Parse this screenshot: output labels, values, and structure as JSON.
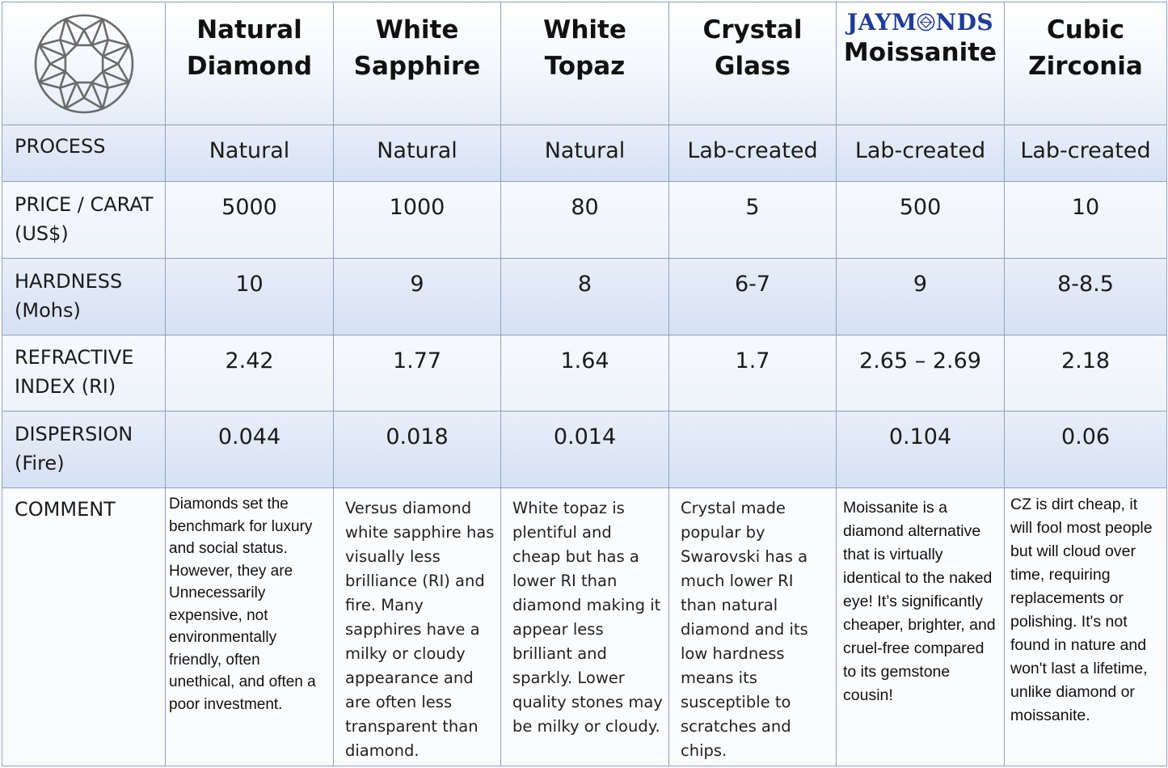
{
  "header": {
    "logo_icon": "round-brilliant-diamond-icon",
    "columns": [
      {
        "line1": "Natural",
        "line2": "Diamond"
      },
      {
        "line1": "White",
        "line2": "Sapphire"
      },
      {
        "line1": "White",
        "line2": "Topaz"
      },
      {
        "line1": "Crystal",
        "line2": "Glass"
      },
      {
        "brand_pre": "JAYM",
        "brand_post": "NDS",
        "brand_icon": "diamond-o-icon",
        "line2": "Moissanite"
      },
      {
        "line1": "Cubic",
        "line2": "Zirconia"
      }
    ]
  },
  "rows": {
    "process": {
      "label_line1": "PROCESS",
      "values": [
        "Natural",
        "Natural",
        "Natural",
        "Lab-created",
        "Lab-created",
        "Lab-created"
      ]
    },
    "price": {
      "label_line1": "PRICE / CARAT",
      "label_line2": "(US$)",
      "values": [
        "5000",
        "1000",
        "80",
        "5",
        "500",
        "10"
      ]
    },
    "hardness": {
      "label_line1": "HARDNESS",
      "label_line2": "(Mohs)",
      "values": [
        "10",
        "9",
        "8",
        "6-7",
        "9",
        "8-8.5"
      ]
    },
    "refractive": {
      "label_line1": "REFRACTIVE",
      "label_line2": "INDEX (RI)",
      "values": [
        "2.42",
        "1.77",
        "1.64",
        "1.7",
        "2.65 – 2.69",
        "2.18"
      ]
    },
    "dispersion": {
      "label_line1": "DISPERSION",
      "label_line2": "(Fire)",
      "values": [
        "0.044",
        "0.018",
        "0.014",
        "",
        "0.104",
        "0.06"
      ]
    },
    "comment": {
      "label_line1": "COMMENT",
      "values": [
        "Diamonds set the benchmark for luxury and social status. However, they are Unnecessarily expensive, not environmentally friendly, often unethical, and often a poor investment.",
        "Versus diamond white sapphire has visually less brilliance (RI) and fire.  Many sapphires have a milky or cloudy appearance and are often less transparent than diamond.",
        "White topaz is plentiful and cheap but has a lower RI than diamond making it appear less brilliant and sparkly.  Lower quality stones may be milky or cloudy.",
        "Crystal made popular by Swarovski has a much lower RI than natural diamond and its low hardness means its susceptible to scratches and chips.",
        "Moissanite is a diamond alternative that is virtually identical to the naked eye! It’s significantly cheaper, brighter, and cruel-free compared to its gemstone cousin!",
        "CZ is dirt cheap, it will fool most people but will cloud over time, requiring replacements or polishing. It's not found in nature and won't last a lifetime, unlike diamond or moissanite."
      ]
    }
  }
}
